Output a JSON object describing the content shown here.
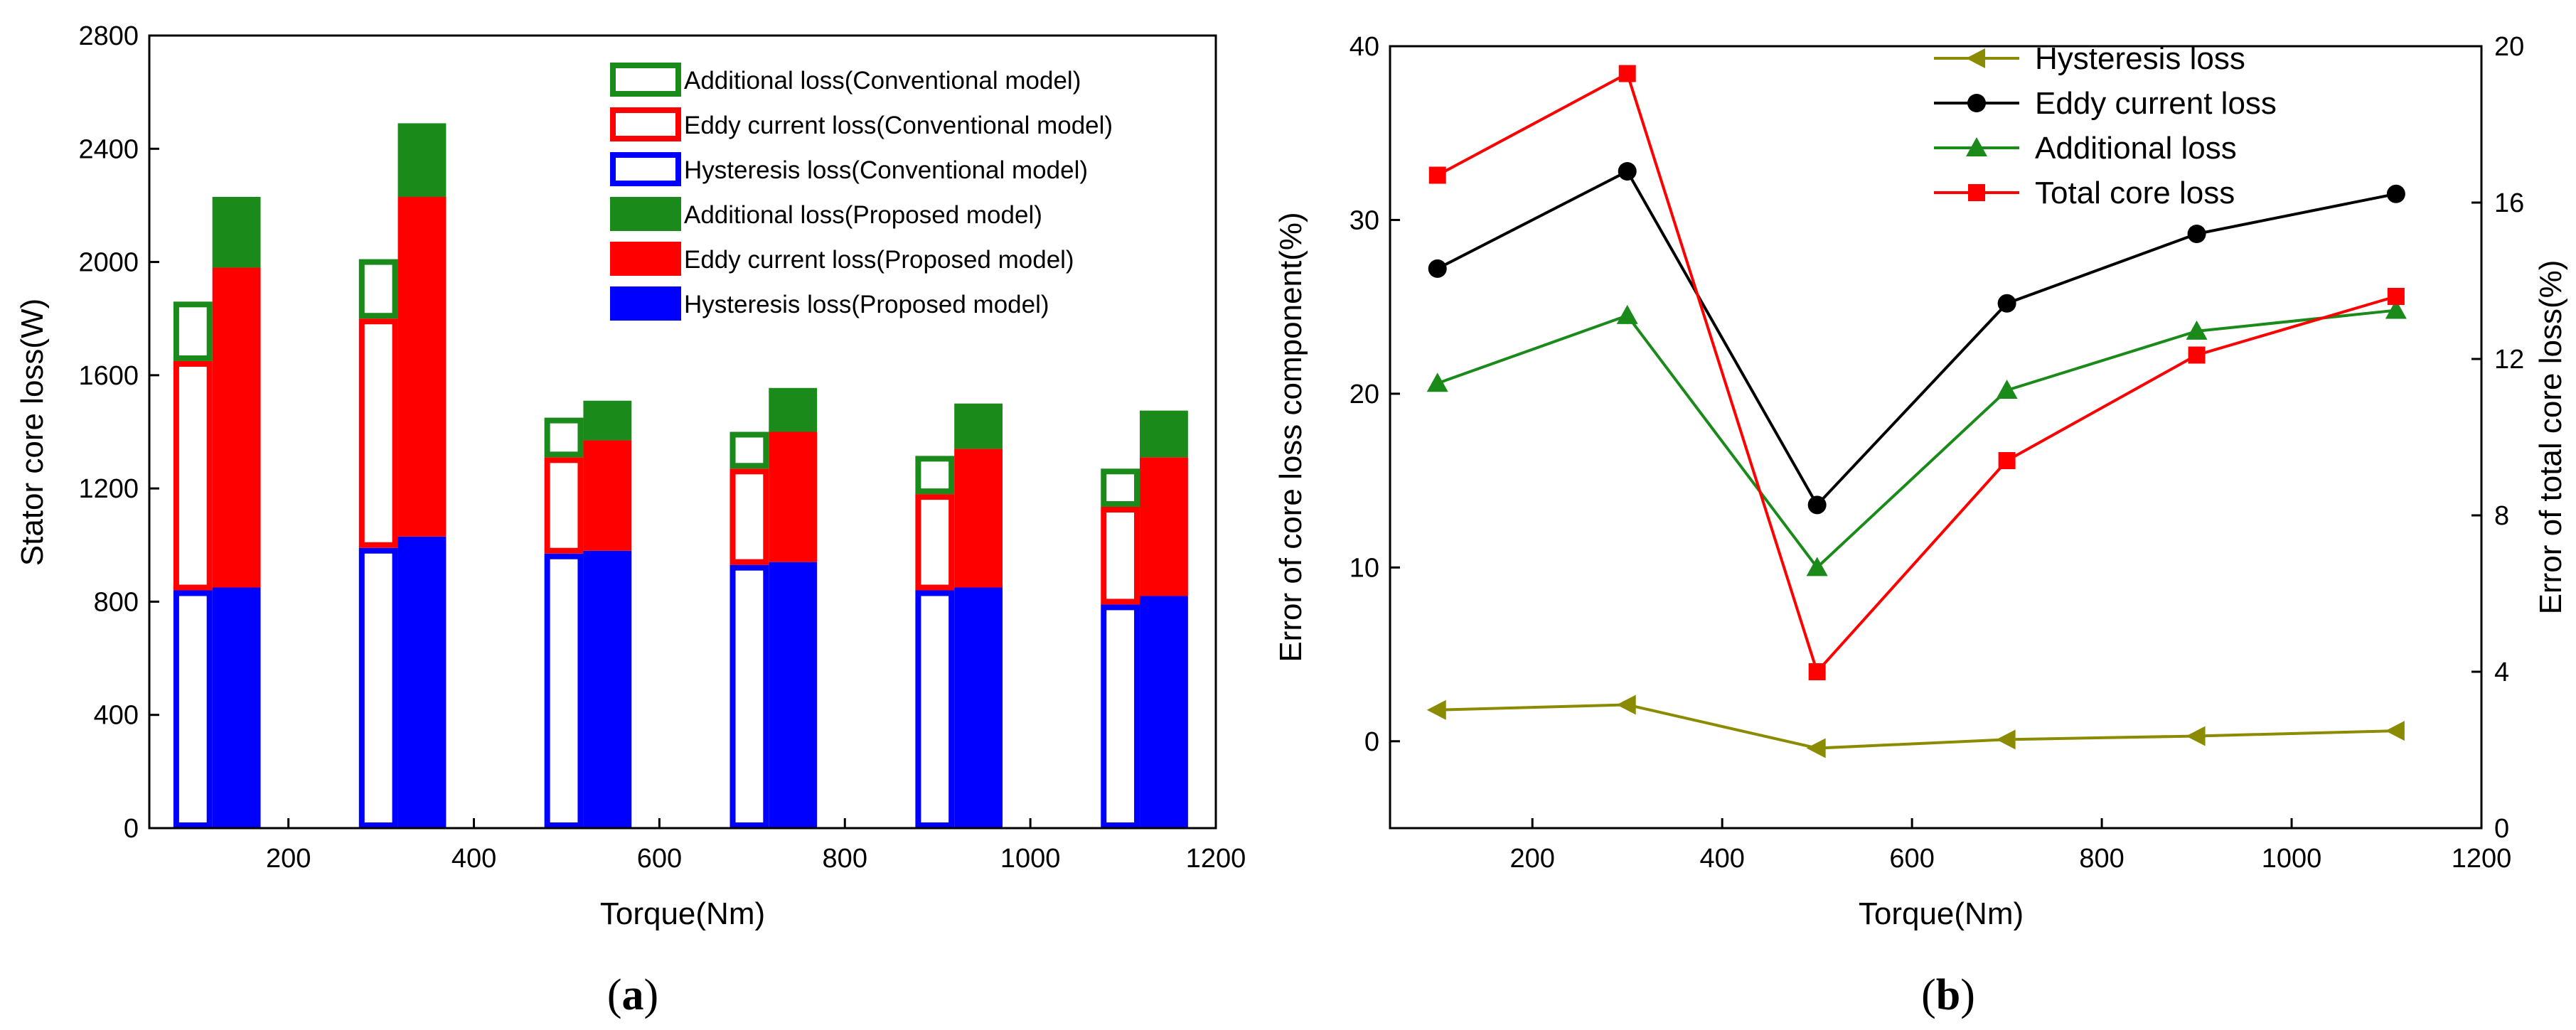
{
  "chart_data": [
    {
      "id": "a",
      "type": "bar",
      "caption": "a",
      "xlabel": "Torque(Nm)",
      "ylabel": "Stator core loss(W)",
      "xlim": [
        50,
        1200
      ],
      "ylim": [
        0,
        2800
      ],
      "xticks": [
        200,
        400,
        600,
        800,
        1000,
        1200
      ],
      "yticks": [
        0,
        400,
        800,
        1200,
        1600,
        2000,
        2400,
        2800
      ],
      "torque": [
        100,
        300,
        500,
        700,
        900,
        1100
      ],
      "series": [
        {
          "name": "Additional loss(Conventional model)",
          "model": "conventional",
          "component": "additional",
          "color": "#1a8a1a",
          "values": [
            210,
            210,
            140,
            130,
            135,
            135
          ]
        },
        {
          "name": "Eddy current loss(Conventional model)",
          "model": "conventional",
          "component": "eddy",
          "color": "#ff0000",
          "values": [
            810,
            810,
            340,
            340,
            340,
            345
          ]
        },
        {
          "name": "Hysteresis loss(Conventional model)",
          "model": "conventional",
          "component": "hysteresis",
          "color": "#0000ff",
          "values": [
            840,
            990,
            970,
            930,
            840,
            790
          ]
        },
        {
          "name": "Additional loss(Proposed model)",
          "model": "proposed",
          "component": "additional",
          "color": "#1a8a1a",
          "values": [
            250,
            260,
            140,
            155,
            160,
            165
          ]
        },
        {
          "name": "Eddy current loss(Proposed model)",
          "model": "proposed",
          "component": "eddy",
          "color": "#ff0000",
          "values": [
            1130,
            1200,
            390,
            460,
            490,
            490
          ]
        },
        {
          "name": "Hysteresis loss(Proposed model)",
          "model": "proposed",
          "component": "hysteresis",
          "color": "#0000ff",
          "values": [
            850,
            1030,
            980,
            940,
            850,
            820
          ]
        }
      ]
    },
    {
      "id": "b",
      "type": "line",
      "caption": "b",
      "xlabel": "Torque(Nm)",
      "ylabel": "Error of core loss component(%)",
      "ylabel_right": "Error of total core loss(%)",
      "xlim": [
        50,
        1200
      ],
      "ylim": [
        -5,
        40
      ],
      "ylim_right": [
        0,
        20
      ],
      "xticks": [
        200,
        400,
        600,
        800,
        1000,
        1200
      ],
      "yticks": [
        0,
        10,
        20,
        30,
        40
      ],
      "yticks_right": [
        0,
        4,
        8,
        12,
        16,
        20
      ],
      "x": [
        100,
        300,
        500,
        700,
        900,
        1110
      ],
      "series": [
        {
          "name": "Hysteresis loss",
          "axis": "left",
          "color": "#8b8b00",
          "marker": "triangle-left",
          "values": [
            1.8,
            2.1,
            -0.4,
            0.1,
            0.3,
            0.6
          ]
        },
        {
          "name": "Eddy current loss",
          "axis": "left",
          "color": "#000000",
          "marker": "circle",
          "values": [
            27.2,
            32.8,
            13.6,
            25.2,
            29.2,
            31.5
          ]
        },
        {
          "name": "Additional loss",
          "axis": "left",
          "color": "#1a8a1a",
          "marker": "triangle-up",
          "values": [
            20.6,
            24.5,
            10.0,
            20.2,
            23.6,
            24.8
          ]
        },
        {
          "name": "Total core loss",
          "axis": "right",
          "color": "#ff0000",
          "marker": "square",
          "values": [
            16.7,
            19.3,
            4.0,
            9.4,
            12.1,
            13.6
          ]
        }
      ]
    }
  ]
}
